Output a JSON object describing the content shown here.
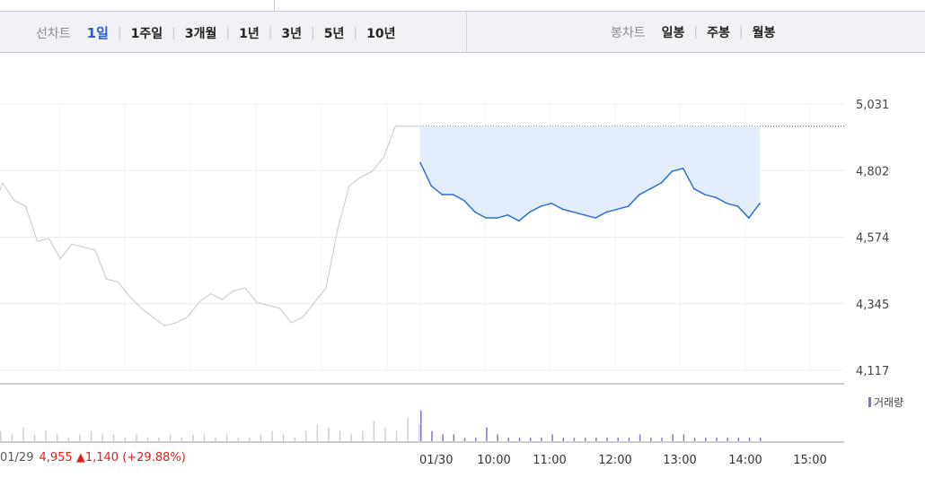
{
  "tabs_line": {
    "label": "선차트",
    "items": [
      {
        "label": "1일",
        "active": true
      },
      {
        "label": "1주일",
        "active": false
      },
      {
        "label": "3개월",
        "active": false
      },
      {
        "label": "1년",
        "active": false
      },
      {
        "label": "3년",
        "active": false
      },
      {
        "label": "5년",
        "active": false
      },
      {
        "label": "10년",
        "active": false
      }
    ]
  },
  "tabs_candle": {
    "label": "봉차트",
    "items": [
      {
        "label": "일봉",
        "active": false
      },
      {
        "label": "주봉",
        "active": false
      },
      {
        "label": "월봉",
        "active": false
      }
    ]
  },
  "footer": {
    "prev_date": "01/29",
    "price": "4,955",
    "arrow": "▲",
    "change": "1,140",
    "pct": "(+29.88%)"
  },
  "legend": {
    "volume_label": "거래량"
  },
  "colors": {
    "line_today": "#2f6fd6",
    "fill_today": "#e4edfb",
    "line_prev": "#cfcfcf",
    "volume": "#8b6fd6",
    "up": "#e0201b",
    "active_tab": "#2b5bd7"
  },
  "chart_data": {
    "type": "line",
    "ylim": [
      4117,
      5031
    ],
    "yticks": [
      "5,031",
      "4,802",
      "4,574",
      "4,345",
      "4,117"
    ],
    "xticks": [
      "01/30",
      "10:00",
      "11:00",
      "12:00",
      "13:00",
      "14:00",
      "15:00"
    ],
    "reference_price": 4955,
    "series": [
      {
        "day": "01/29",
        "values": [
          4650,
          4760,
          4700,
          4680,
          4560,
          4570,
          4500,
          4550,
          4540,
          4530,
          4430,
          4420,
          4370,
          4330,
          4300,
          4270,
          4280,
          4300,
          4350,
          4380,
          4360,
          4390,
          4400,
          4350,
          4340,
          4330,
          4280,
          4300,
          4350,
          4400,
          4600,
          4750,
          4780,
          4800,
          4850,
          4955,
          4955,
          4955
        ]
      },
      {
        "day": "01/30",
        "x": [
          "09:00",
          "09:10",
          "09:20",
          "09:30",
          "09:40",
          "09:50",
          "10:00",
          "10:10",
          "10:20",
          "10:30",
          "10:40",
          "10:50",
          "11:00",
          "11:10",
          "11:20",
          "11:30",
          "11:40",
          "11:50",
          "12:00",
          "12:10",
          "12:20",
          "12:30",
          "12:40",
          "12:50",
          "13:00",
          "13:10",
          "13:20",
          "13:30",
          "13:40",
          "13:50",
          "14:00",
          "14:10"
        ],
        "values": [
          4830,
          4750,
          4720,
          4720,
          4700,
          4660,
          4640,
          4640,
          4650,
          4630,
          4660,
          4680,
          4690,
          4670,
          4660,
          4650,
          4640,
          4660,
          4670,
          4680,
          4720,
          4740,
          4760,
          4800,
          4810,
          4740,
          4720,
          4710,
          4690,
          4680,
          4640,
          4690
        ]
      }
    ],
    "volume": {
      "prev": [
        3,
        2,
        4,
        2,
        3,
        2,
        1,
        2,
        3,
        2,
        2,
        1,
        2,
        1,
        1,
        2,
        1,
        2,
        2,
        1,
        2,
        1,
        1,
        2,
        3,
        2,
        1,
        3,
        5,
        4,
        3,
        2,
        3,
        6,
        4,
        3,
        7,
        5
      ],
      "today": [
        9,
        3,
        2,
        2,
        1,
        1,
        4,
        2,
        1,
        1,
        1,
        1,
        2,
        1,
        1,
        1,
        1,
        1,
        1,
        1,
        2,
        1,
        1,
        2,
        2,
        1,
        1,
        1,
        1,
        1,
        1,
        1
      ]
    }
  }
}
